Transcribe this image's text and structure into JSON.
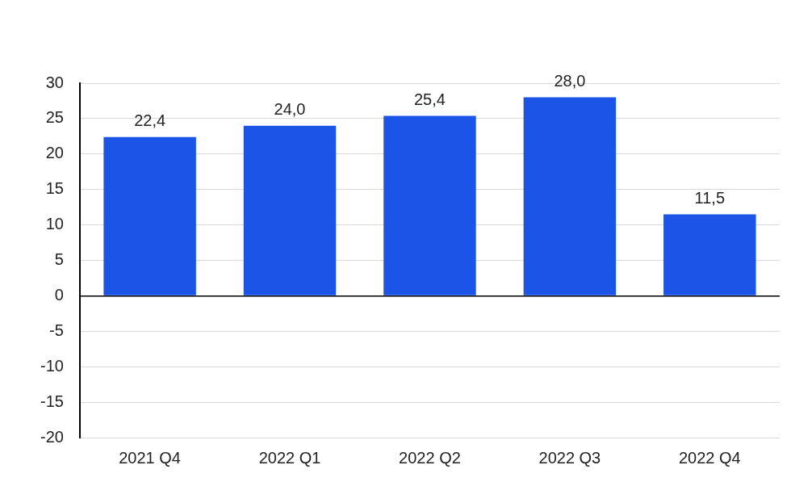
{
  "chart_data": {
    "type": "bar",
    "categories": [
      "2021 Q4",
      "2022 Q1",
      "2022 Q2",
      "2022 Q3",
      "2022 Q4"
    ],
    "values": [
      22.4,
      24.0,
      25.4,
      28.0,
      11.5
    ],
    "value_labels": [
      "22,4",
      "24,0",
      "25,4",
      "28,0",
      "11,5"
    ],
    "color": "#1c54e8",
    "ylim": [
      -20,
      30
    ],
    "yticks": [
      -20,
      -15,
      -10,
      -5,
      0,
      5,
      10,
      15,
      20,
      25,
      30
    ],
    "grid": true,
    "data_labels": true
  }
}
